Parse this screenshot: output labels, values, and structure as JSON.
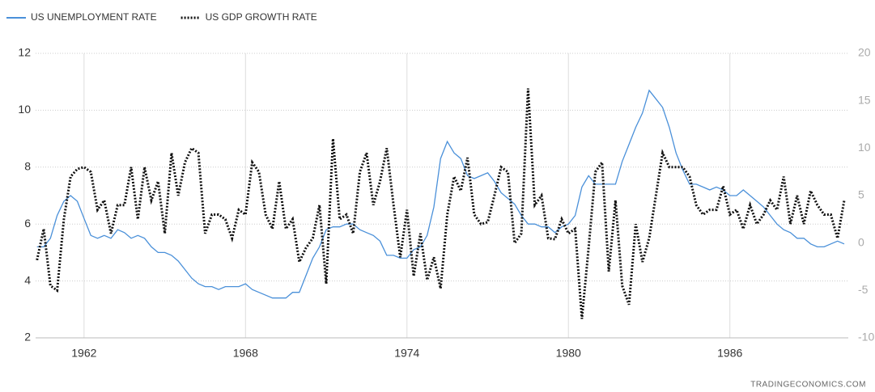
{
  "chart_data": {
    "type": "line",
    "source": "TRADINGECONOMICS.COM",
    "x": [
      1960.25,
      1960.5,
      1960.75,
      1961,
      1961.25,
      1961.5,
      1961.75,
      1962,
      1962.25,
      1962.5,
      1962.75,
      1963,
      1963.25,
      1963.5,
      1963.75,
      1964,
      1964.25,
      1964.5,
      1964.75,
      1965,
      1965.25,
      1965.5,
      1965.75,
      1966,
      1966.25,
      1966.5,
      1966.75,
      1967,
      1967.25,
      1967.5,
      1967.75,
      1968,
      1968.25,
      1968.5,
      1968.75,
      1969,
      1969.25,
      1969.5,
      1969.75,
      1970,
      1970.25,
      1970.5,
      1970.75,
      1971,
      1971.25,
      1971.5,
      1971.75,
      1972,
      1972.25,
      1972.5,
      1972.75,
      1973,
      1973.25,
      1973.5,
      1973.75,
      1974,
      1974.25,
      1974.5,
      1974.75,
      1975,
      1975.25,
      1975.5,
      1975.75,
      1976,
      1976.25,
      1976.5,
      1976.75,
      1977,
      1977.25,
      1977.5,
      1977.75,
      1978,
      1978.25,
      1978.5,
      1978.75,
      1979,
      1979.25,
      1979.5,
      1979.75,
      1980,
      1980.25,
      1980.5,
      1980.75,
      1981,
      1981.25,
      1981.5,
      1981.75,
      1982,
      1982.25,
      1982.5,
      1982.75,
      1983,
      1983.25,
      1983.5,
      1983.75,
      1984,
      1984.25,
      1984.5,
      1984.75,
      1985,
      1985.25,
      1985.5,
      1985.75,
      1986,
      1986.25,
      1986.5,
      1986.75,
      1987,
      1987.25,
      1987.5,
      1987.75,
      1988,
      1988.25,
      1988.5,
      1988.75,
      1989,
      1989.25,
      1989.5,
      1989.75,
      1990,
      1990.25
    ],
    "series": [
      {
        "name": "US UNEMPLOYMENT RATE",
        "color": "#4a90d9",
        "axis": "y",
        "values": [
          5.2,
          5.2,
          5.5,
          6.3,
          6.8,
          7.0,
          6.8,
          6.2,
          5.6,
          5.5,
          5.6,
          5.5,
          5.8,
          5.7,
          5.5,
          5.6,
          5.5,
          5.2,
          5.0,
          5.0,
          4.9,
          4.7,
          4.4,
          4.1,
          3.9,
          3.8,
          3.8,
          3.7,
          3.8,
          3.8,
          3.8,
          3.9,
          3.7,
          3.6,
          3.5,
          3.4,
          3.4,
          3.4,
          3.6,
          3.6,
          4.2,
          4.8,
          5.2,
          5.8,
          5.9,
          5.9,
          6.0,
          6.0,
          5.8,
          5.7,
          5.6,
          5.4,
          4.9,
          4.9,
          4.8,
          4.8,
          5.1,
          5.2,
          5.6,
          6.6,
          8.3,
          8.9,
          8.5,
          8.3,
          7.7,
          7.6,
          7.7,
          7.8,
          7.5,
          7.1,
          6.9,
          6.7,
          6.3,
          6.0,
          6.0,
          5.9,
          5.9,
          5.7,
          5.9,
          6.0,
          6.3,
          7.3,
          7.7,
          7.4,
          7.4,
          7.4,
          7.4,
          8.2,
          8.8,
          9.4,
          9.9,
          10.7,
          10.4,
          10.1,
          9.4,
          8.5,
          7.9,
          7.4,
          7.4,
          7.3,
          7.2,
          7.3,
          7.2,
          7.0,
          7.0,
          7.2,
          7.0,
          6.8,
          6.6,
          6.3,
          6.0,
          5.8,
          5.7,
          5.5,
          5.5,
          5.3,
          5.2,
          5.2,
          5.3,
          5.4,
          5.3
        ]
      },
      {
        "name": "US GDP GROWTH RATE",
        "color": "#111111",
        "axis": "y2",
        "dashed": true,
        "values": [
          -1.8,
          1.5,
          -4.5,
          -5.0,
          2.5,
          7.0,
          7.8,
          8.0,
          7.5,
          3.5,
          4.5,
          1.0,
          4.0,
          4.0,
          8.0,
          2.5,
          8.0,
          4.5,
          6.5,
          1.0,
          9.5,
          5.0,
          8.5,
          10.0,
          9.5,
          1.0,
          3.0,
          3.0,
          2.5,
          0.5,
          3.5,
          3.0,
          8.5,
          7.5,
          3.0,
          1.5,
          6.5,
          1.5,
          2.5,
          -2.0,
          -0.5,
          0.5,
          4.0,
          -4.3,
          11.0,
          2.5,
          3.0,
          1.0,
          7.5,
          9.5,
          4.0,
          6.5,
          10.0,
          4.0,
          -1.5,
          3.5,
          -3.5,
          1.0,
          -3.9,
          -1.5,
          -4.8,
          3.0,
          7.0,
          5.5,
          9.0,
          3.0,
          2.0,
          2.2,
          5.0,
          8.0,
          7.5,
          0.0,
          1.0,
          16.3,
          4.0,
          5.0,
          0.5,
          0.4,
          2.5,
          1.0,
          1.5,
          -8.0,
          -0.5,
          7.5,
          8.5,
          -3.0,
          4.5,
          -4.5,
          -6.5,
          2.0,
          -2.0,
          0.5,
          5.0,
          9.5,
          8.0,
          8.0,
          8.0,
          7.0,
          4.0,
          3.0,
          3.5,
          3.5,
          6.0,
          3.0,
          3.5,
          1.5,
          4.0,
          2.0,
          3.0,
          4.5,
          3.5,
          7.0,
          2.0,
          5.0,
          2.0,
          5.5,
          4.0,
          3.0,
          3.0,
          0.5,
          4.5
        ]
      }
    ],
    "xlim": [
      1960.2,
      1990.4
    ],
    "xticks": [
      1962,
      1968,
      1974,
      1980,
      1986
    ],
    "ylim": [
      2,
      12
    ],
    "yticks": [
      2,
      4,
      6,
      8,
      10,
      12
    ],
    "y2lim": [
      -10,
      20
    ],
    "y2ticks": [
      -10,
      -5,
      0,
      5,
      10,
      15,
      20
    ],
    "grid": true,
    "legend": "top-left"
  }
}
